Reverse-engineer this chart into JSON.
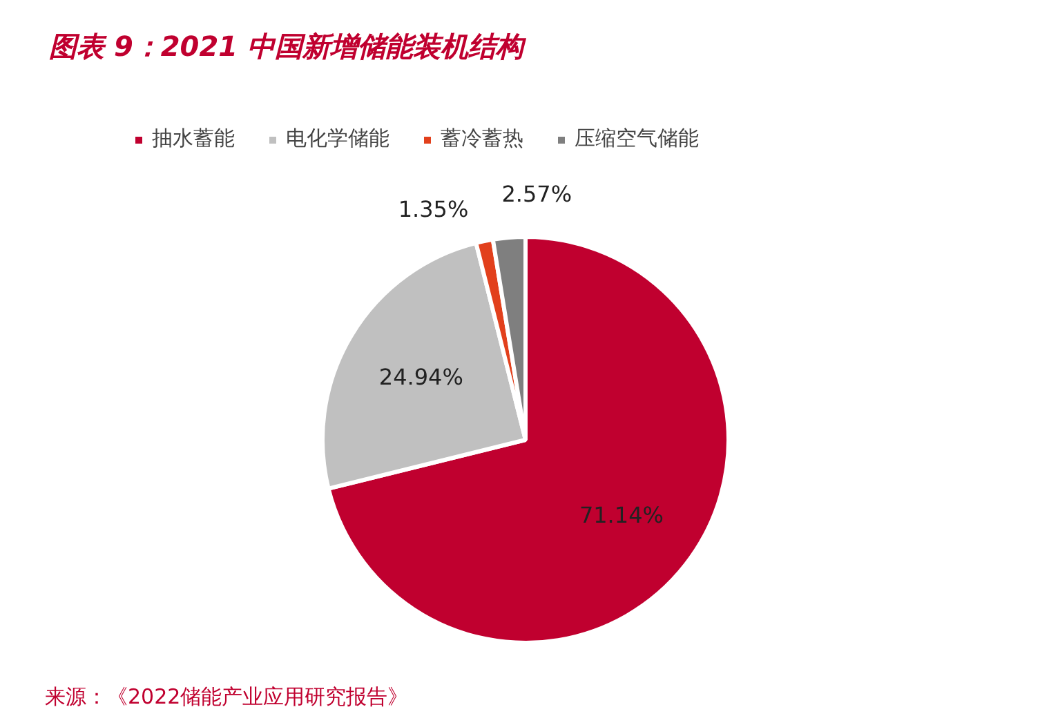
{
  "chart_data": {
    "type": "pie",
    "title": "图表 9：2021 中国新增储能装机结构",
    "categories": [
      "抽水蓄能",
      "电化学储能",
      "蓄冷蓄热",
      "压缩空气储能"
    ],
    "values": [
      71.14,
      24.94,
      1.35,
      2.57
    ],
    "colors": [
      "#c0002f",
      "#c0c0c0",
      "#e2401c",
      "#7f7f7f"
    ],
    "value_labels": [
      "71.14%",
      "24.94%",
      "1.35%",
      "2.57%"
    ],
    "legend": "top",
    "annotations": [
      "来源：《2022储能产业应用研究报告》"
    ]
  }
}
